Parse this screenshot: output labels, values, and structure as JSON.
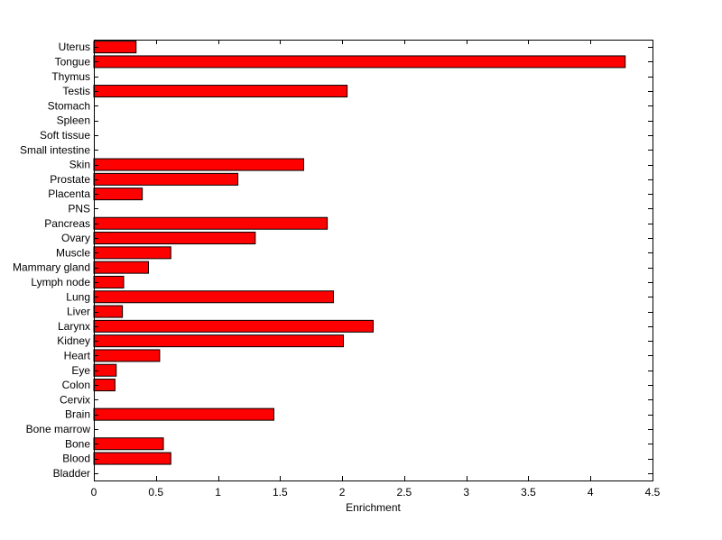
{
  "chart_data": {
    "type": "bar",
    "orientation": "horizontal",
    "title": "",
    "xlabel": "Enrichment",
    "ylabel": "",
    "xlim": [
      0,
      4.5
    ],
    "xticks": [
      "0",
      "0.5",
      "1",
      "1.5",
      "2",
      "2.5",
      "3",
      "3.5",
      "4",
      "4.5"
    ],
    "grid": false,
    "bar_color": "#ff0000",
    "categories": [
      "Uterus",
      "Tongue",
      "Thymus",
      "Testis",
      "Stomach",
      "Spleen",
      "Soft tissue",
      "Small intestine",
      "Skin",
      "Prostate",
      "Placenta",
      "PNS",
      "Pancreas",
      "Ovary",
      "Muscle",
      "Mammary gland",
      "Lymph node",
      "Lung",
      "Liver",
      "Larynx",
      "Kidney",
      "Heart",
      "Eye",
      "Colon",
      "Cervix",
      "Brain",
      "Bone marrow",
      "Bone",
      "Blood",
      "Bladder"
    ],
    "values": [
      0.34,
      4.28,
      0,
      2.04,
      0,
      0,
      0,
      0,
      1.69,
      1.16,
      0.39,
      0,
      1.88,
      1.3,
      0.62,
      0.44,
      0.24,
      1.93,
      0.23,
      2.25,
      2.01,
      0.53,
      0.18,
      0.17,
      0,
      1.45,
      0,
      0.56,
      0.62,
      0
    ]
  }
}
